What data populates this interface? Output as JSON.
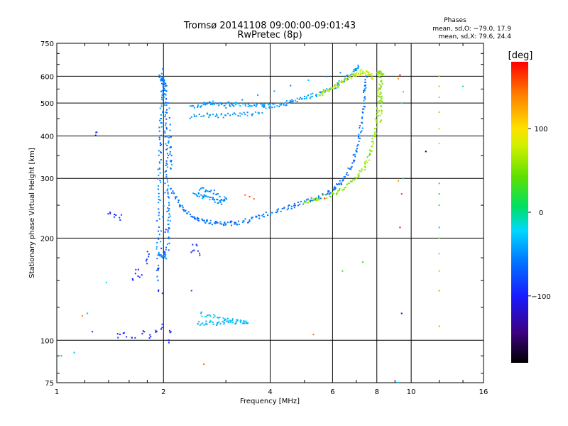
{
  "chart_data": {
    "type": "scatter",
    "title": "Tromsø 20141108 09:00:00-09:01:43",
    "subtitle": "RwPretec (8p)",
    "xlabel": "Frequency [MHz]",
    "ylabel": "Stationary phase Virtual Height [km]",
    "x_scale": "log",
    "y_scale": "log",
    "xlim": [
      1,
      16
    ],
    "ylim": [
      75,
      750
    ],
    "x_ticks": [
      1,
      2,
      4,
      6,
      8,
      10,
      16
    ],
    "x_tick_labels": [
      "1",
      "2",
      "4",
      "6",
      "8",
      "10",
      "16"
    ],
    "y_ticks": [
      75,
      100,
      200,
      300,
      400,
      500,
      600,
      750
    ],
    "y_tick_labels": [
      "75",
      "100",
      "200",
      "300",
      "400",
      "500",
      "600",
      "750"
    ],
    "x_gridlines": [
      2,
      4,
      6,
      8,
      10
    ],
    "y_gridlines": [
      100,
      200,
      300,
      400,
      500,
      600
    ],
    "grid": true,
    "legend_placement": "top-right",
    "stats": {
      "heading": "Phases",
      "line_o": "mean, sd,O: −79.0, 17.9",
      "line_x": "mean, sd,X:  79.6, 24.4"
    },
    "colorbar": {
      "label": "[deg]",
      "min": -180,
      "max": 180,
      "ticks": [
        100,
        0,
        -100
      ],
      "tick_labels": [
        "100",
        "0",
        "−100"
      ],
      "colors": [
        "#000000",
        "#3c0080",
        "#1a1aff",
        "#0078ff",
        "#00d8ff",
        "#00e060",
        "#60e000",
        "#d0f000",
        "#ffe000",
        "#ff8000",
        "#ff0000"
      ]
    },
    "series": [
      {
        "description_note_none": true,
        "color_phase": -95,
        "points": [
          [
            1.9,
            105
          ],
          [
            1.98,
            110
          ],
          [
            2.05,
            100
          ],
          [
            1.75,
            105
          ],
          [
            1.65,
            103
          ],
          [
            1.55,
            104
          ],
          [
            1.5,
            103
          ],
          [
            1.85,
            102
          ],
          [
            2.1,
            107
          ],
          [
            1.96,
            140
          ],
          [
            1.95,
            160
          ],
          [
            2.0,
            185
          ],
          [
            2.05,
            210
          ],
          [
            1.68,
            160
          ],
          [
            1.72,
            155
          ],
          [
            1.78,
            170
          ],
          [
            1.8,
            180
          ],
          [
            1.65,
            150
          ],
          [
            1.3,
            410
          ],
          [
            1.45,
            235
          ],
          [
            1.5,
            230
          ],
          [
            1.4,
            240
          ],
          [
            2.42,
            185
          ],
          [
            2.45,
            190
          ],
          [
            2.5,
            180
          ]
        ]
      }
    ],
    "traces": [
      {
        "phase": -55,
        "points": [
          [
            1.93,
            150
          ],
          [
            1.93,
            200
          ],
          [
            1.94,
            260
          ],
          [
            1.95,
            320
          ],
          [
            1.96,
            380
          ],
          [
            1.97,
            450
          ],
          [
            1.98,
            520
          ],
          [
            2.0,
            580
          ],
          [
            1.96,
            600
          ],
          [
            2.02,
            560
          ],
          [
            2.03,
            470
          ],
          [
            2.04,
            400
          ],
          [
            2.05,
            330
          ],
          [
            2.06,
            270
          ],
          [
            2.07,
            230
          ],
          [
            2.08,
            200
          ],
          [
            2.02,
            175
          ],
          [
            1.94,
            180
          ],
          [
            2.08,
            400
          ],
          [
            2.1,
            320
          ],
          [
            2.06,
            500
          ],
          [
            1.99,
            630
          ]
        ]
      },
      {
        "phase": -60,
        "points": [
          [
            2.1,
            280
          ],
          [
            2.2,
            255
          ],
          [
            2.3,
            240
          ],
          [
            2.45,
            230
          ],
          [
            2.6,
            225
          ],
          [
            2.8,
            221
          ],
          [
            3.0,
            220
          ],
          [
            3.2,
            222
          ],
          [
            3.5,
            226
          ],
          [
            3.8,
            233
          ],
          [
            4.2,
            240
          ],
          [
            4.6,
            248
          ],
          [
            5.0,
            255
          ],
          [
            5.4,
            262
          ],
          [
            5.8,
            270
          ],
          [
            6.1,
            280
          ],
          [
            6.4,
            295
          ],
          [
            6.7,
            320
          ],
          [
            7.0,
            360
          ],
          [
            7.2,
            410
          ],
          [
            7.35,
            480
          ],
          [
            7.4,
            550
          ],
          [
            7.45,
            600
          ]
        ]
      },
      {
        "phase": 55,
        "points": [
          [
            5.0,
            255
          ],
          [
            5.5,
            262
          ],
          [
            6.0,
            270
          ],
          [
            6.5,
            282
          ],
          [
            7.0,
            300
          ],
          [
            7.4,
            325
          ],
          [
            7.7,
            360
          ],
          [
            7.9,
            410
          ],
          [
            8.05,
            470
          ],
          [
            8.15,
            530
          ],
          [
            8.2,
            580
          ],
          [
            8.1,
            620
          ],
          [
            8.3,
            610
          ],
          [
            8.25,
            500
          ],
          [
            8.18,
            440
          ]
        ]
      },
      {
        "phase": -45,
        "points": [
          [
            2.4,
            490
          ],
          [
            2.6,
            495
          ],
          [
            2.8,
            500
          ],
          [
            3.0,
            498
          ],
          [
            3.2,
            495
          ],
          [
            3.5,
            492
          ],
          [
            3.8,
            490
          ],
          [
            4.0,
            490
          ],
          [
            4.3,
            495
          ],
          [
            4.6,
            505
          ],
          [
            5.0,
            515
          ],
          [
            5.4,
            530
          ],
          [
            5.8,
            545
          ],
          [
            6.2,
            565
          ],
          [
            6.6,
            590
          ],
          [
            6.9,
            620
          ],
          [
            7.1,
            640
          ],
          [
            2.4,
            455
          ],
          [
            2.7,
            460
          ],
          [
            3.0,
            460
          ],
          [
            3.4,
            463
          ],
          [
            3.8,
            468
          ]
        ]
      },
      {
        "phase": 75,
        "points": [
          [
            5.5,
            530
          ],
          [
            5.8,
            545
          ],
          [
            6.1,
            560
          ],
          [
            6.4,
            575
          ],
          [
            6.7,
            595
          ],
          [
            7.0,
            610
          ],
          [
            7.3,
            620
          ],
          [
            7.6,
            610
          ],
          [
            7.8,
            590
          ]
        ]
      },
      {
        "phase": -50,
        "points": [
          [
            2.45,
            270
          ],
          [
            2.6,
            265
          ],
          [
            2.75,
            260
          ],
          [
            2.9,
            255
          ],
          [
            3.0,
            262
          ],
          [
            2.55,
            280
          ],
          [
            2.85,
            270
          ]
        ]
      },
      {
        "phase": -30,
        "points": [
          [
            2.5,
            112
          ],
          [
            2.7,
            113
          ],
          [
            2.9,
            112
          ],
          [
            3.1,
            114
          ],
          [
            3.3,
            113
          ],
          [
            3.45,
            112
          ],
          [
            2.55,
            120
          ],
          [
            3.0,
            115
          ]
        ]
      }
    ],
    "sparse_points": [
      {
        "x": 1.03,
        "y": 90,
        "phase": -30
      },
      {
        "x": 1.18,
        "y": 118,
        "phase": 140
      },
      {
        "x": 1.22,
        "y": 120,
        "phase": -30
      },
      {
        "x": 1.26,
        "y": 106,
        "phase": -100
      },
      {
        "x": 1.38,
        "y": 148,
        "phase": -20
      },
      {
        "x": 1.12,
        "y": 92,
        "phase": -30
      },
      {
        "x": 9.4,
        "y": 500,
        "phase": -20
      },
      {
        "x": 9.2,
        "y": 295,
        "phase": 140
      },
      {
        "x": 9.4,
        "y": 270,
        "phase": 160
      },
      {
        "x": 9.3,
        "y": 215,
        "phase": 180
      },
      {
        "x": 9.3,
        "y": 605,
        "phase": 180
      },
      {
        "x": 9.5,
        "y": 540,
        "phase": -20
      },
      {
        "x": 9.2,
        "y": 590,
        "phase": 140
      },
      {
        "x": 9.4,
        "y": 120,
        "phase": -110
      },
      {
        "x": 9.5,
        "y": 300,
        "phase": -30
      },
      {
        "x": 11.0,
        "y": 360,
        "phase": -180
      },
      {
        "x": 6.4,
        "y": 160,
        "phase": 30
      },
      {
        "x": 7.3,
        "y": 170,
        "phase": 30
      },
      {
        "x": 5.3,
        "y": 104,
        "phase": 150
      },
      {
        "x": 12.0,
        "y": 600,
        "phase": 60
      },
      {
        "x": 12.0,
        "y": 560,
        "phase": 60
      },
      {
        "x": 12.0,
        "y": 520,
        "phase": 60
      },
      {
        "x": 12.0,
        "y": 470,
        "phase": 60
      },
      {
        "x": 12.0,
        "y": 420,
        "phase": 70
      },
      {
        "x": 12.0,
        "y": 380,
        "phase": 70
      },
      {
        "x": 12.0,
        "y": 290,
        "phase": 20
      },
      {
        "x": 12.0,
        "y": 270,
        "phase": 20
      },
      {
        "x": 12.0,
        "y": 250,
        "phase": 30
      },
      {
        "x": 12.0,
        "y": 215,
        "phase": -30
      },
      {
        "x": 12.0,
        "y": 180,
        "phase": 60
      },
      {
        "x": 12.0,
        "y": 160,
        "phase": 60
      },
      {
        "x": 12.0,
        "y": 140,
        "phase": 40
      },
      {
        "x": 12.0,
        "y": 110,
        "phase": 50
      },
      {
        "x": 14.0,
        "y": 560,
        "phase": -10
      },
      {
        "x": 12.0,
        "y": 200,
        "phase": 60
      },
      {
        "x": 3.6,
        "y": 261,
        "phase": 150
      },
      {
        "x": 3.5,
        "y": 265,
        "phase": 160
      },
      {
        "x": 3.4,
        "y": 268,
        "phase": 150
      },
      {
        "x": 9.2,
        "y": 75,
        "phase": -30
      },
      {
        "x": 2.6,
        "y": 85,
        "phase": 150
      },
      {
        "x": 2.4,
        "y": 140,
        "phase": -100
      },
      {
        "x": 4.0,
        "y": 395,
        "phase": -110
      },
      {
        "x": 5.7,
        "y": 262,
        "phase": 170
      }
    ]
  }
}
